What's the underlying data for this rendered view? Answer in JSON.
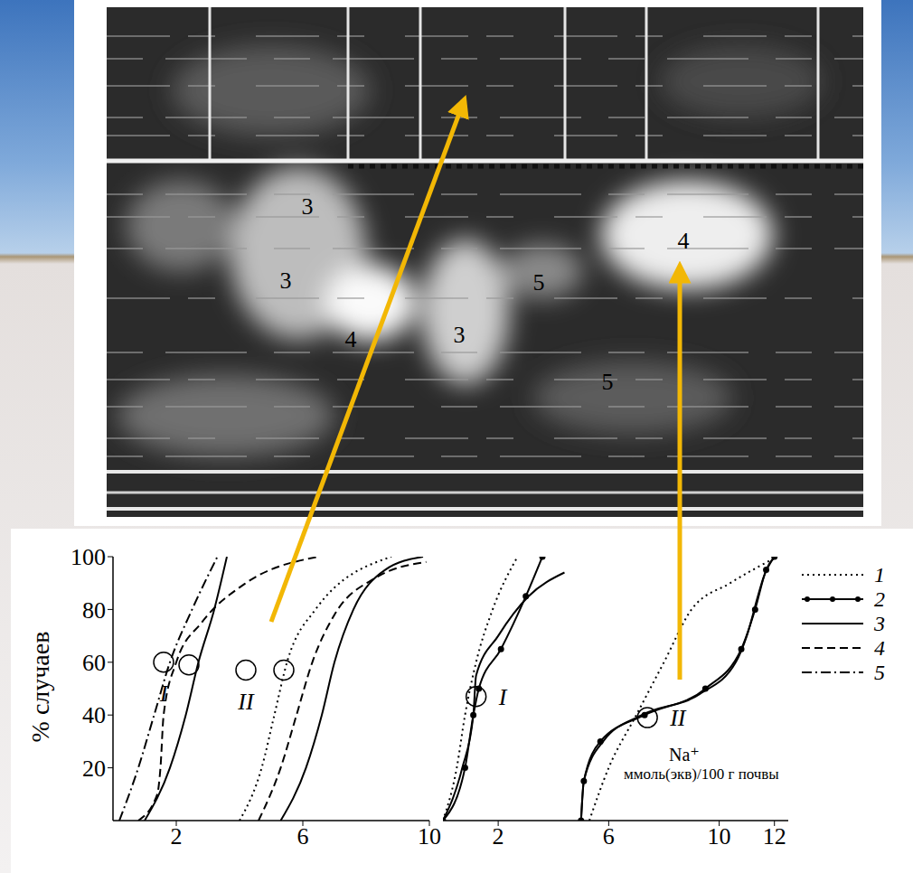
{
  "chart_data": [
    {
      "type": "line",
      "xlim": [
        0,
        10
      ],
      "xticks": [
        2,
        6,
        10
      ],
      "ylim": [
        0,
        100
      ],
      "yticks": [
        20,
        40,
        60,
        80,
        100
      ],
      "y_label": "% случаев",
      "series": [
        {
          "name": "5",
          "line_style": "dashdot",
          "x": [
            0.2,
            0.8,
            1.3,
            1.8,
            2.5,
            3.3
          ],
          "y": [
            0,
            20,
            40,
            60,
            80,
            100
          ]
        },
        {
          "name": "3",
          "line_style": "solid",
          "x": [
            1.0,
            1.8,
            2.3,
            2.7,
            3.2,
            3.6
          ],
          "y": [
            0,
            20,
            40,
            60,
            80,
            100
          ]
        },
        {
          "name": "4",
          "line_style": "dashed",
          "x": [
            0.8,
            1.4,
            1.5,
            1.6,
            2.0,
            2.8,
            4.2,
            6.5
          ],
          "y": [
            0,
            10,
            20,
            40,
            60,
            75,
            90,
            100
          ]
        },
        {
          "name": "1",
          "line_style": "dotted",
          "x": [
            4.0,
            4.7,
            5.1,
            5.5,
            6.4,
            8.8
          ],
          "y": [
            0,
            20,
            40,
            60,
            80,
            100
          ]
        },
        {
          "name": "4",
          "line_style": "dashed",
          "x": [
            4.6,
            5.3,
            5.8,
            6.3,
            7.0,
            8.3,
            9.9
          ],
          "y": [
            0,
            20,
            40,
            60,
            78,
            92,
            98
          ]
        },
        {
          "name": "3",
          "line_style": "solid",
          "x": [
            5.3,
            6.1,
            6.6,
            7.0,
            7.6,
            8.6,
            9.8
          ],
          "y": [
            0,
            20,
            40,
            60,
            80,
            95,
            100
          ]
        }
      ],
      "annotations": [
        {
          "text": "I",
          "points": [
            {
              "x": 1.6,
              "y": 60
            },
            {
              "x": 2.4,
              "y": 59
            }
          ]
        },
        {
          "text": "II",
          "points": [
            {
              "x": 4.2,
              "y": 57
            },
            {
              "x": 5.4,
              "y": 57
            }
          ]
        }
      ]
    },
    {
      "type": "line",
      "xlim": [
        0,
        12.5
      ],
      "xticks": [
        2,
        6,
        10,
        12
      ],
      "ylim": [
        0,
        100
      ],
      "tick_labels": "x",
      "x_label": [
        "Na⁺",
        "ммоль(экв)/100 г почвы"
      ],
      "series": [
        {
          "name": "1",
          "line_style": "dotted",
          "x": [
            0,
            0.5,
            0.8,
            1.2,
            1.8,
            2.7
          ],
          "y": [
            0,
            20,
            40,
            60,
            80,
            100
          ]
        },
        {
          "name": "2",
          "line_style": "solid",
          "marker": "circle",
          "x": [
            0,
            0.8,
            1.1,
            1.3,
            2.1,
            3.0,
            3.6
          ],
          "y": [
            0,
            20,
            40,
            50,
            65,
            85,
            100
          ]
        },
        {
          "name": "3",
          "line_style": "solid",
          "x": [
            0,
            0.7,
            1.1,
            1.2,
            2.0,
            3.1,
            4.4
          ],
          "y": [
            0,
            20,
            40,
            55,
            70,
            85,
            94
          ]
        },
        {
          "name": "1",
          "line_style": "dotted",
          "x": [
            5.3,
            6.0,
            7.0,
            8.0,
            9.0,
            10.4,
            12.1
          ],
          "y": [
            0,
            20,
            40,
            60,
            80,
            90,
            100
          ]
        },
        {
          "name": "2",
          "line_style": "solid",
          "marker": "circle",
          "x": [
            5.0,
            5.1,
            5.7,
            7.3,
            9.5,
            10.8,
            11.3,
            11.7,
            12.0
          ],
          "y": [
            0,
            15,
            30,
            40,
            50,
            65,
            80,
            95,
            100
          ]
        },
        {
          "name": "3",
          "line_style": "solid",
          "x": [
            5.0,
            5.1,
            5.8,
            7.2,
            9.3,
            10.6,
            11.0,
            11.4,
            11.6,
            12.0
          ],
          "y": [
            0,
            15,
            30,
            40,
            48,
            60,
            70,
            85,
            92,
            100
          ]
        }
      ],
      "annotations": [
        {
          "text": "I",
          "points": [
            {
              "x": 1.2,
              "y": 47
            }
          ]
        },
        {
          "text": "II",
          "points": [
            {
              "x": 7.4,
              "y": 39
            }
          ]
        }
      ]
    }
  ],
  "legend_items": [
    {
      "name": "1",
      "line_style": "dotted"
    },
    {
      "name": "2",
      "line_style": "solid",
      "marker": "circle"
    },
    {
      "name": "3",
      "line_style": "solid"
    },
    {
      "name": "4",
      "line_style": "dashed"
    },
    {
      "name": "5",
      "line_style": "dashdot"
    }
  ],
  "photo_labels": [
    "3",
    "3",
    "4",
    "3",
    "5",
    "5",
    "4"
  ]
}
